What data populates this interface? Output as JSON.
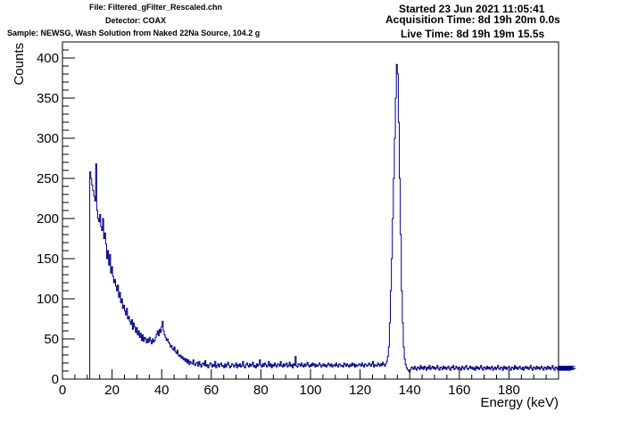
{
  "header": {
    "file": "File: Filtered_gFilter_Rescaled.chn",
    "detector": "Detector: COAX",
    "sample": "Sample: NEWSG, Wash Solution from Naked 22Na Source, 104.2 g",
    "started": "Started 23 Jun 2021 11:05:41",
    "acquisition": "Acquisition Time: 8d 19h 20m 0.0s",
    "live": "Live Time: 8d 19h 19m 15.5s"
  },
  "chart_data": {
    "type": "line",
    "xlabel": "Energy (keV)",
    "ylabel": "Counts",
    "xlim": [
      0,
      200
    ],
    "ylim": [
      0,
      420
    ],
    "x_ticks": [
      "0",
      "20",
      "40",
      "60",
      "80",
      "100",
      "120",
      "140",
      "160",
      "180"
    ],
    "y_ticks": [
      "0",
      "50",
      "100",
      "150",
      "200",
      "250",
      "300",
      "350",
      "400"
    ],
    "line_color": "#000080",
    "grid": false,
    "bin_start_keV": 11,
    "bin_width_keV": 0.4,
    "counts": [
      258,
      250,
      242,
      235,
      228,
      222,
      268,
      210,
      200,
      196,
      205,
      190,
      185,
      200,
      175,
      182,
      168,
      150,
      160,
      142,
      155,
      132,
      140,
      128,
      120,
      124,
      116,
      110,
      117,
      102,
      108,
      95,
      100,
      88,
      92,
      85,
      80,
      88,
      75,
      78,
      72,
      68,
      74,
      62,
      70,
      65,
      58,
      64,
      55,
      60,
      52,
      57,
      48,
      55,
      47,
      52,
      50,
      45,
      50,
      46,
      52,
      48,
      44,
      50,
      46,
      48,
      52,
      56,
      60,
      54,
      62,
      58,
      65,
      72,
      60,
      55,
      52,
      48,
      50,
      46,
      44,
      40,
      42,
      38,
      36,
      40,
      34,
      32,
      36,
      30,
      28,
      30,
      26,
      28,
      24,
      26,
      22,
      25,
      20,
      24,
      18,
      22,
      20,
      19,
      24,
      18,
      17,
      20,
      21,
      16,
      22,
      18,
      15,
      19,
      20,
      17,
      23,
      16,
      18,
      14,
      17,
      20,
      19,
      15,
      18,
      16,
      22,
      14,
      17,
      19,
      15,
      18,
      20,
      16,
      17,
      14,
      19,
      15,
      18,
      21,
      17,
      14,
      16,
      19,
      18,
      15,
      17,
      20,
      14,
      18,
      16,
      19,
      15,
      17,
      22,
      16,
      14,
      18,
      20,
      17,
      15,
      19,
      16,
      18,
      21,
      15,
      17,
      14,
      19,
      16,
      18,
      24,
      17,
      15,
      19,
      16,
      20,
      18,
      15,
      17,
      22,
      16,
      19,
      14,
      18,
      16,
      20,
      17,
      15,
      19,
      18,
      16,
      22,
      17,
      15,
      19,
      16,
      18,
      20,
      15,
      17,
      21,
      16,
      18,
      14,
      19,
      17,
      28,
      16,
      15,
      19,
      18,
      16,
      20,
      17,
      15,
      19,
      16,
      18,
      21,
      17,
      15,
      18,
      16,
      20,
      17,
      19,
      15,
      18,
      16,
      17,
      20,
      18,
      15,
      17,
      19,
      16,
      18,
      15,
      17,
      20,
      18,
      16,
      19,
      15,
      17,
      18,
      16,
      20,
      17,
      15,
      19,
      18,
      16,
      17,
      15,
      20,
      18,
      16,
      19,
      17,
      15,
      18,
      16,
      20,
      17,
      19,
      15,
      18,
      16,
      17,
      19,
      18,
      16,
      20,
      17,
      15,
      19,
      18,
      16,
      17,
      20,
      18,
      16,
      19,
      22,
      15,
      18,
      17,
      16,
      20,
      18,
      16,
      19,
      17,
      21,
      18,
      16,
      19,
      22,
      28,
      40,
      70,
      110,
      150,
      200,
      250,
      300,
      350,
      392,
      380,
      320,
      250,
      180,
      110,
      70,
      40,
      25,
      18,
      14,
      12,
      10,
      9,
      12,
      15,
      14,
      12,
      16,
      13,
      11,
      15,
      14,
      12,
      17,
      13,
      15,
      12,
      16,
      14,
      11,
      15,
      13,
      17,
      12,
      14,
      16,
      13,
      15,
      12,
      14,
      17,
      13,
      11,
      15,
      14,
      12,
      16,
      13,
      15,
      12,
      14,
      16,
      13,
      11,
      15,
      14,
      17,
      12,
      13,
      16,
      14,
      12,
      15,
      13,
      11,
      16,
      14,
      12,
      15,
      17,
      13,
      12,
      14,
      16,
      13,
      15,
      12,
      14,
      11,
      16,
      13,
      15,
      12,
      14,
      17,
      13,
      11,
      15,
      14,
      12,
      16,
      13,
      15,
      12,
      14,
      16,
      11,
      13,
      15,
      12,
      14,
      17,
      13,
      12,
      15,
      14,
      11,
      16,
      13,
      15,
      12,
      14,
      16,
      13,
      11,
      15,
      14,
      12,
      17,
      13,
      15,
      12,
      14,
      16,
      13,
      12,
      15,
      11,
      14,
      16,
      13,
      15,
      12,
      14,
      17,
      13,
      11,
      15,
      14,
      12,
      16,
      13,
      15,
      12,
      14,
      16,
      13,
      11,
      15,
      14,
      12,
      16,
      13,
      15,
      12,
      14,
      17,
      13,
      11,
      15,
      14,
      12,
      16,
      13,
      15,
      12,
      14,
      11,
      16,
      13,
      15,
      12,
      14,
      16,
      13,
      11,
      15,
      14,
      12,
      16,
      13
    ]
  }
}
